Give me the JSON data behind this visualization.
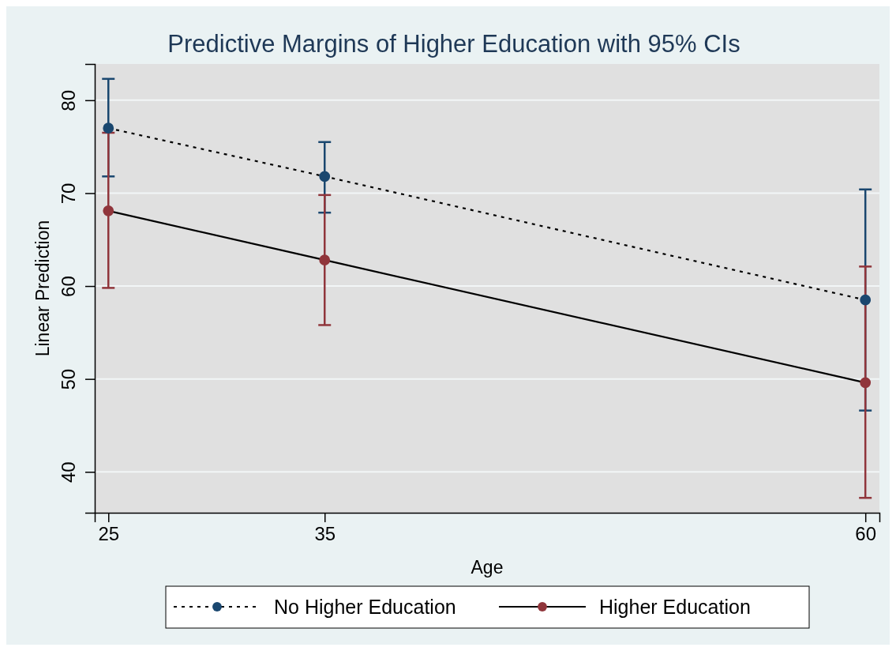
{
  "chart_data": {
    "type": "line",
    "title": "Predictive Margins of Higher Education with 95% CIs",
    "xlabel": "Age",
    "ylabel": "Linear Prediction",
    "x": [
      25,
      35,
      60
    ],
    "series": [
      {
        "name": "No Higher Education",
        "color": "#1a476f",
        "line_style": "dotted",
        "values": [
          77.0,
          71.8,
          58.5
        ],
        "errors": [
          [
            71.8,
            82.3
          ],
          [
            67.9,
            75.5
          ],
          [
            46.6,
            70.4
          ]
        ]
      },
      {
        "name": "Higher Education",
        "color": "#90353b",
        "line_style": "solid",
        "values": [
          68.1,
          62.8,
          49.6
        ],
        "errors": [
          [
            59.8,
            76.5
          ],
          [
            55.8,
            69.8
          ],
          [
            37.2,
            62.1
          ]
        ]
      }
    ],
    "xlim": [
      24.37,
      60.65
    ],
    "xticks": [
      25,
      35,
      60
    ],
    "ylim": [
      35.6,
      83.9
    ],
    "yticks": [
      40,
      50,
      60,
      70,
      80
    ],
    "grid": "y",
    "legend": "bottom",
    "marker": "circle"
  }
}
